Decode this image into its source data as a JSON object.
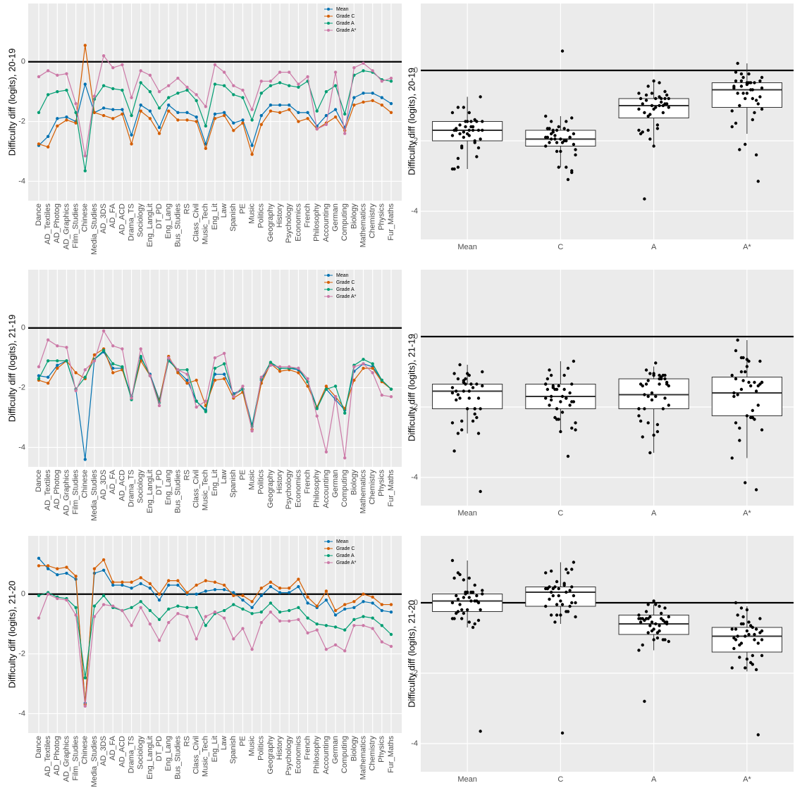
{
  "chart_data": [
    {
      "type": "line",
      "y_label": "Difficulty diff (logits), 20-19",
      "ylim": [
        -4.65,
        1.95
      ],
      "yticks": [
        -4,
        -2,
        0
      ],
      "hline": 0,
      "grid": true,
      "legend": "top-right",
      "categories": [
        "Dance",
        "AD_Textiles",
        "AD_Photog",
        "AD_Graphics",
        "Film_Studies",
        "Chinese",
        "Media_Studies",
        "AD_3DS",
        "AD_FA",
        "AD_ACD",
        "Drama_TS",
        "Sociology",
        "Eng_LangLit",
        "DT_PD",
        "Eng_Lang",
        "Bus_Studies",
        "RS",
        "Class_Civil",
        "Music_Tech",
        "Eng_Lit",
        "Law",
        "Spanish",
        "PE",
        "Music",
        "Politics",
        "Geography",
        "History",
        "Psychology",
        "Economics",
        "French",
        "Philosophy",
        "Accounting",
        "German",
        "Computing",
        "Biology",
        "Mathematics",
        "Chemistry",
        "Physics",
        "Fur_Maths"
      ],
      "series": [
        {
          "name": "Mean",
          "color": "#0072b2",
          "values": [
            -2.8,
            -2.5,
            -1.9,
            -1.85,
            -2.0,
            -0.75,
            -1.7,
            -1.55,
            -1.6,
            -1.6,
            -2.45,
            -1.45,
            -1.65,
            -2.2,
            -1.45,
            -1.7,
            -1.7,
            -1.85,
            -2.75,
            -1.75,
            -1.7,
            -2.05,
            -1.95,
            -2.8,
            -1.8,
            -1.45,
            -1.45,
            -1.45,
            -1.7,
            -1.7,
            -2.15,
            -1.8,
            -1.6,
            -2.2,
            -1.2,
            -1.05,
            -1.05,
            -1.2,
            -1.4
          ]
        },
        {
          "name": "Grade C",
          "color": "#d55e00",
          "values": [
            -2.75,
            -2.85,
            -2.15,
            -1.95,
            -2.05,
            0.55,
            -1.7,
            -1.8,
            -1.9,
            -1.75,
            -2.75,
            -1.65,
            -1.9,
            -2.4,
            -1.65,
            -1.95,
            -1.95,
            -2.0,
            -2.9,
            -1.9,
            -1.8,
            -2.3,
            -2.05,
            -3.1,
            -2.1,
            -1.65,
            -1.7,
            -1.6,
            -2.0,
            -1.9,
            -2.25,
            -2.05,
            -1.85,
            -2.3,
            -1.45,
            -1.35,
            -1.3,
            -1.45,
            -1.7
          ]
        },
        {
          "name": "Grade A",
          "color": "#009e73",
          "values": [
            -1.7,
            -1.1,
            -1.0,
            -0.95,
            -1.7,
            -3.65,
            -1.25,
            -0.8,
            -0.9,
            -0.95,
            -1.8,
            -0.7,
            -1.0,
            -1.55,
            -1.2,
            -1.05,
            -0.95,
            -1.3,
            -2.15,
            -0.75,
            -0.8,
            -1.1,
            -1.2,
            -1.95,
            -1.05,
            -0.8,
            -0.7,
            -0.8,
            -0.85,
            -0.65,
            -1.65,
            -1.0,
            -0.8,
            -1.75,
            -0.45,
            -0.3,
            -0.35,
            -0.6,
            -0.65
          ]
        },
        {
          "name": "Grade A*",
          "color": "#cc79a7",
          "values": [
            -0.5,
            -0.3,
            -0.45,
            -0.4,
            -1.4,
            -3.15,
            -1.15,
            0.2,
            -0.2,
            -0.1,
            -1.2,
            -0.3,
            -0.45,
            -1.0,
            -0.8,
            -0.55,
            -0.85,
            -1.1,
            -1.5,
            -0.1,
            -0.35,
            -0.8,
            -0.95,
            -1.6,
            -0.65,
            -0.65,
            -0.35,
            -0.35,
            -0.75,
            -0.5,
            -2.25,
            -2.1,
            -0.35,
            -2.4,
            -0.2,
            -0.05,
            -0.3,
            -0.65,
            -0.55
          ]
        }
      ]
    },
    {
      "type": "box",
      "y_label": "Difficulty diff (logits), 20-19",
      "ylim": [
        -4.8,
        1.9
      ],
      "yticks": [
        -4,
        -2,
        0
      ],
      "hline": 0,
      "grid": true,
      "categories": [
        "Mean",
        "C",
        "A",
        "A*"
      ],
      "boxes": [
        {
          "q1": -2.0,
          "median": -1.7,
          "q3": -1.45,
          "whisker_low": -2.8,
          "whisker_high": -0.75
        },
        {
          "q1": -2.15,
          "median": -1.95,
          "q3": -1.7,
          "whisker_low": -2.75,
          "whisker_high": -1.3
        },
        {
          "q1": -1.35,
          "median": -1.0,
          "q3": -0.8,
          "whisker_low": -2.15,
          "whisker_high": -0.3
        },
        {
          "q1": -1.05,
          "median": -0.55,
          "q3": -0.35,
          "whisker_low": -1.8,
          "whisker_high": 0.2
        }
      ]
    },
    {
      "type": "line",
      "y_label": "Difficulty diff (logits), 21-19",
      "ylim": [
        -4.65,
        1.95
      ],
      "yticks": [
        -4,
        -2,
        0
      ],
      "hline": 0,
      "grid": true,
      "legend": "top-right",
      "categories": [
        "Dance",
        "AD_Textiles",
        "AD_Photog",
        "AD_Graphics",
        "Film_Studies",
        "Chinese",
        "Media_Studies",
        "AD_3DS",
        "AD_FA",
        "AD_ACD",
        "Drama_TS",
        "Sociology",
        "Eng_LangLit",
        "DT_PD",
        "Eng_Lang",
        "Bus_Studies",
        "RS",
        "Class_Civil",
        "Music_Tech",
        "Eng_Lit",
        "Law",
        "Spanish",
        "PE",
        "Music",
        "Politics",
        "Geography",
        "History",
        "Psychology",
        "Economics",
        "French",
        "Philosophy",
        "Accounting",
        "German",
        "Computing",
        "Biology",
        "Mathematics",
        "Chemistry",
        "Physics",
        "Fur_Maths"
      ],
      "series": [
        {
          "name": "Mean",
          "color": "#0072b2",
          "values": [
            -1.6,
            -1.65,
            -1.25,
            -1.1,
            -2.05,
            -4.4,
            -1.05,
            -0.8,
            -1.35,
            -1.35,
            -2.3,
            -1.0,
            -1.55,
            -2.4,
            -1.05,
            -1.45,
            -1.75,
            -2.45,
            -2.75,
            -1.55,
            -1.55,
            -2.2,
            -2.05,
            -3.25,
            -1.75,
            -1.2,
            -1.35,
            -1.35,
            -1.4,
            -1.8,
            -2.65,
            -2.05,
            -2.4,
            -2.75,
            -1.45,
            -1.2,
            -1.3,
            -1.75,
            -2.05
          ]
        },
        {
          "name": "Grade C",
          "color": "#d55e00",
          "values": [
            -1.75,
            -1.85,
            -1.35,
            -1.1,
            -1.5,
            -1.7,
            -0.9,
            -0.7,
            -1.5,
            -1.4,
            -2.35,
            -1.1,
            -1.6,
            -2.45,
            -0.95,
            -1.5,
            -1.85,
            -1.75,
            -2.6,
            -1.75,
            -1.7,
            -2.35,
            -2.15,
            -3.4,
            -1.85,
            -1.2,
            -1.45,
            -1.4,
            -1.5,
            -1.95,
            -2.65,
            -1.95,
            -2.3,
            -2.7,
            -1.75,
            -1.35,
            -1.35,
            -1.8,
            -2.05
          ]
        },
        {
          "name": "Grade A",
          "color": "#009e73",
          "values": [
            -1.7,
            -1.1,
            -1.1,
            -1.1,
            -2.05,
            -1.65,
            -1.05,
            -0.75,
            -1.2,
            -1.3,
            -2.4,
            -0.95,
            -1.6,
            -2.5,
            -1.1,
            -1.4,
            -1.4,
            -2.45,
            -2.8,
            -1.35,
            -1.2,
            -2.25,
            -2.05,
            -3.3,
            -1.7,
            -1.15,
            -1.35,
            -1.35,
            -1.35,
            -1.8,
            -2.7,
            -2.05,
            -1.95,
            -2.85,
            -1.25,
            -1.05,
            -1.2,
            -1.75,
            -2.05
          ]
        },
        {
          "name": "Grade A*",
          "color": "#cc79a7",
          "values": [
            -1.3,
            -0.4,
            -0.6,
            -0.65,
            -2.1,
            -1.4,
            -1.1,
            -0.1,
            -0.6,
            -0.7,
            -2.35,
            -0.7,
            -1.6,
            -2.6,
            -1.0,
            -1.4,
            -1.55,
            -2.65,
            -2.45,
            -1.0,
            -0.85,
            -2.3,
            -1.95,
            -3.45,
            -1.65,
            -1.25,
            -1.3,
            -1.3,
            -1.35,
            -1.7,
            -2.95,
            -4.15,
            -2.3,
            -4.35,
            -1.3,
            -1.2,
            -1.5,
            -2.25,
            -2.3
          ]
        }
      ]
    },
    {
      "type": "box",
      "y_label": "Difficulty diff (logits), 21-19",
      "ylim": [
        -4.8,
        1.9
      ],
      "yticks": [
        -4,
        -2,
        0
      ],
      "hline": 0,
      "grid": true,
      "categories": [
        "Mean",
        "C",
        "A",
        "A*"
      ],
      "boxes": [
        {
          "q1": -2.05,
          "median": -1.55,
          "q3": -1.35,
          "whisker_low": -2.75,
          "whisker_high": -0.8
        },
        {
          "q1": -2.05,
          "median": -1.7,
          "q3": -1.35,
          "whisker_low": -2.7,
          "whisker_high": -0.7
        },
        {
          "q1": -2.05,
          "median": -1.65,
          "q3": -1.2,
          "whisker_low": -3.3,
          "whisker_high": -0.85
        },
        {
          "q1": -2.25,
          "median": -1.6,
          "q3": -1.15,
          "whisker_low": -3.45,
          "whisker_high": -0.1
        }
      ]
    },
    {
      "type": "line",
      "y_label": "Difficulty diff (logits), 21-20",
      "ylim": [
        -4.65,
        1.95
      ],
      "yticks": [
        -4,
        -2,
        0
      ],
      "hline": 0,
      "grid": true,
      "legend": "top-right",
      "categories": [
        "Dance",
        "AD_Textiles",
        "AD_Photog",
        "AD_Graphics",
        "Film_Studies",
        "Chinese",
        "Media_Studies",
        "AD_3DS",
        "AD_FA",
        "AD_ACD",
        "Drama_TS",
        "Sociology",
        "Eng_LangLit",
        "DT_PD",
        "Eng_Lang",
        "Bus_Studies",
        "RS",
        "Class_Civil",
        "Music_Tech",
        "Eng_Lit",
        "Law",
        "Spanish",
        "PE",
        "Music",
        "Politics",
        "Geography",
        "History",
        "Psychology",
        "Economics",
        "French",
        "Philosophy",
        "Accounting",
        "German",
        "Computing",
        "Biology",
        "Mathematics",
        "Chemistry",
        "Physics",
        "Fur_Maths"
      ],
      "series": [
        {
          "name": "Mean",
          "color": "#0072b2",
          "values": [
            1.2,
            0.85,
            0.65,
            0.7,
            0.5,
            -3.65,
            0.7,
            0.8,
            0.3,
            0.3,
            0.2,
            0.35,
            0.2,
            -0.2,
            0.3,
            0.3,
            0.0,
            0.0,
            0.1,
            0.15,
            0.15,
            0.05,
            -0.2,
            -0.45,
            -0.05,
            0.25,
            0.05,
            0.05,
            0.25,
            -0.3,
            -0.45,
            -0.2,
            -0.7,
            -0.5,
            -0.45,
            -0.25,
            -0.3,
            -0.55,
            -0.6
          ]
        },
        {
          "name": "Grade C",
          "color": "#d55e00",
          "values": [
            0.95,
            0.95,
            0.85,
            0.9,
            0.6,
            -3.7,
            0.85,
            1.15,
            0.4,
            0.4,
            0.4,
            0.55,
            0.35,
            0.0,
            0.45,
            0.45,
            0.05,
            0.3,
            0.45,
            0.4,
            0.3,
            -0.05,
            -0.05,
            -0.25,
            0.2,
            0.4,
            0.2,
            0.2,
            0.5,
            -0.1,
            -0.4,
            0.1,
            -0.55,
            -0.35,
            -0.25,
            0.0,
            -0.1,
            -0.35,
            -0.35
          ]
        },
        {
          "name": "Grade A",
          "color": "#009e73",
          "values": [
            -0.05,
            0.05,
            -0.1,
            -0.15,
            -0.45,
            -2.8,
            -0.4,
            -0.05,
            -0.45,
            -0.55,
            -0.45,
            -0.25,
            -0.55,
            -0.85,
            -0.5,
            -0.4,
            -0.45,
            -0.45,
            -1.05,
            -0.65,
            -0.55,
            -0.35,
            -0.5,
            -0.65,
            -0.6,
            -0.3,
            -0.6,
            -0.55,
            -0.45,
            -0.8,
            -1.0,
            -1.05,
            -1.1,
            -1.2,
            -0.85,
            -0.75,
            -0.8,
            -1.05,
            -1.35
          ]
        },
        {
          "name": "Grade A*",
          "color": "#cc79a7",
          "values": [
            -0.8,
            0.0,
            -0.15,
            -0.2,
            -0.7,
            -3.75,
            -0.75,
            -0.35,
            -0.4,
            -0.55,
            -1.05,
            -0.45,
            -1.0,
            -1.55,
            -0.95,
            -0.65,
            -0.75,
            -1.5,
            -0.75,
            -0.6,
            -0.8,
            -1.5,
            -1.15,
            -1.85,
            -0.95,
            -0.6,
            -0.9,
            -0.9,
            -0.85,
            -1.3,
            -1.2,
            -1.85,
            -1.7,
            -1.9,
            -1.05,
            -1.05,
            -1.15,
            -1.6,
            -1.75
          ]
        }
      ]
    },
    {
      "type": "box",
      "y_label": "Difficulty diff (logits), 21-20",
      "ylim": [
        -4.8,
        1.9
      ],
      "yticks": [
        -4,
        -2,
        0
      ],
      "hline": 0,
      "grid": true,
      "categories": [
        "Mean",
        "C",
        "A",
        "A*"
      ],
      "boxes": [
        {
          "q1": -0.25,
          "median": 0.05,
          "q3": 0.25,
          "whisker_low": -0.7,
          "whisker_high": 1.2
        },
        {
          "q1": -0.1,
          "median": 0.3,
          "q3": 0.45,
          "whisker_low": -0.6,
          "whisker_high": 1.15
        },
        {
          "q1": -0.9,
          "median": -0.6,
          "q3": -0.35,
          "whisker_low": -1.35,
          "whisker_high": -0.05
        },
        {
          "q1": -1.4,
          "median": -0.95,
          "q3": -0.7,
          "whisker_low": -1.95,
          "whisker_high": -0.1
        }
      ]
    }
  ]
}
